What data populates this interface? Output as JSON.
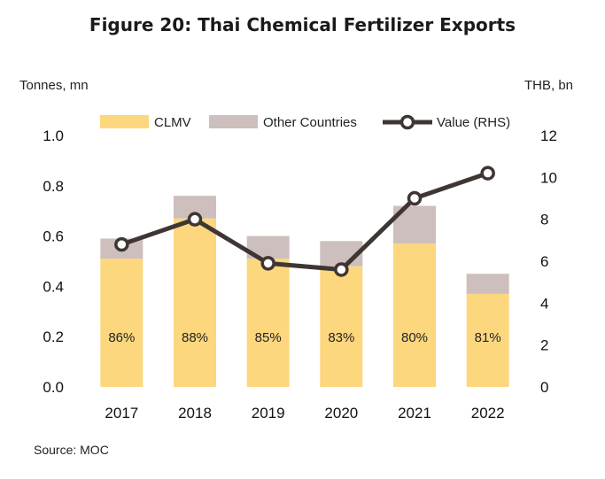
{
  "title": "Figure 20: Thai Chemical Fertilizer Exports",
  "source": "Source: MOC",
  "colors": {
    "clmv": "#FDD77E",
    "other": "#CDBFBD",
    "value_line": "#3F3634",
    "marker_fill": "#FFFFFF"
  },
  "chart_data": {
    "type": "bar",
    "title": "Figure 20: Thai Chemical Fertilizer Exports",
    "ylabel": "Tonnes, mn",
    "y2label": "THB, bn",
    "categories": [
      "2017",
      "2018",
      "2019",
      "2020",
      "2021",
      "2022"
    ],
    "ylim": [
      0,
      1.0
    ],
    "yticks": [
      "0.0",
      "0.2",
      "0.4",
      "0.6",
      "0.8",
      "1.0"
    ],
    "y2lim": [
      0,
      12
    ],
    "y2ticks": [
      "0",
      "2",
      "4",
      "6",
      "8",
      "10",
      "12"
    ],
    "legend_position": "top",
    "grid": false,
    "series": [
      {
        "name": "CLMV",
        "type": "stacked-bar",
        "values": [
          0.51,
          0.67,
          0.51,
          0.48,
          0.57,
          0.37
        ]
      },
      {
        "name": "Other Countries",
        "type": "stacked-bar",
        "values": [
          0.08,
          0.09,
          0.09,
          0.1,
          0.15,
          0.08
        ]
      },
      {
        "name": "Value (RHS)",
        "type": "line",
        "axis": "right",
        "values": [
          6.8,
          8.0,
          5.9,
          5.6,
          9.0,
          10.2
        ]
      }
    ],
    "data_labels": [
      "86%",
      "88%",
      "85%",
      "83%",
      "80%",
      "81%"
    ]
  }
}
